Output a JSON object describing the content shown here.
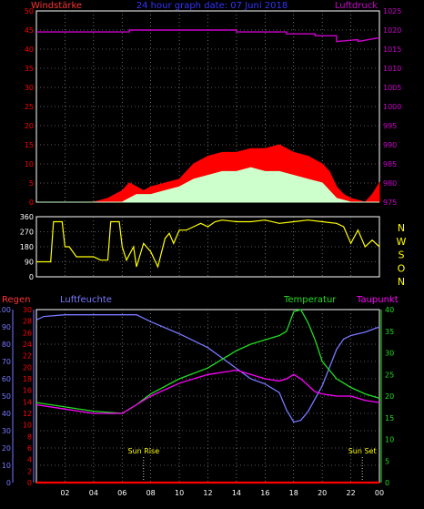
{
  "header": {
    "title": "24 hour graph date: 07 Juni 2018",
    "left_label": "Windstärke",
    "right_label": "Luftdruck"
  },
  "colors": {
    "background": "#000000",
    "frame": "#ffffff",
    "grid": "#b0b0b0",
    "wind_gust": "#ff0000",
    "wind_avg": "#ccffcc",
    "pressure": "#cc00cc",
    "direction": "#ffff00",
    "humidity": "#7777ff",
    "temperature": "#22dd22",
    "dewpoint": "#ff00ff",
    "rain": "#ff0000",
    "title": "#3333ff"
  },
  "chart_data": [
    {
      "type": "area",
      "name": "wind-pressure",
      "title": "24 hour graph date: 07 Juni 2018",
      "ylabel": "Windstärke",
      "y2label": "Luftdruck",
      "ylim": [
        0,
        50
      ],
      "y2lim": [
        975,
        1025
      ],
      "yticks": [
        "0",
        "5",
        "10",
        "15",
        "20",
        "25",
        "30",
        "35",
        "40",
        "45",
        "50"
      ],
      "y2ticks": [
        "975",
        "980",
        "985",
        "990",
        "995",
        "1000",
        "1005",
        "1010",
        "1015",
        "1020",
        "1025"
      ],
      "grid": true,
      "series": [
        {
          "name": "Luftdruck",
          "axis": "right",
          "x": [
            0,
            6.5,
            6.5,
            14,
            14,
            17.5,
            17.5,
            19.5,
            19.5,
            21,
            21,
            22.5,
            22.5,
            24
          ],
          "values": [
            1019.5,
            1019.5,
            1020,
            1020,
            1019.5,
            1019.5,
            1019,
            1019,
            1018.5,
            1018.5,
            1017,
            1017.5,
            1017,
            1018
          ]
        },
        {
          "name": "gusts",
          "axis": "left",
          "x": [
            0,
            4,
            5,
            5.5,
            6,
            6.5,
            7,
            7.5,
            8,
            9,
            10,
            11,
            12,
            13,
            14,
            15,
            16,
            17,
            18,
            19,
            20,
            20.5,
            21,
            21.5,
            22,
            23,
            23.5,
            24
          ],
          "values": [
            0,
            0,
            1,
            2,
            3,
            5,
            4,
            3,
            4,
            5,
            6,
            10,
            12,
            13,
            13,
            14,
            14,
            15,
            13,
            12,
            10,
            8,
            4,
            2,
            1,
            0,
            2,
            5
          ]
        },
        {
          "name": "average",
          "axis": "left",
          "x": [
            0,
            6,
            7,
            8,
            9,
            10,
            11,
            12,
            13,
            14,
            15,
            16,
            17,
            18,
            19,
            20,
            20.5,
            21,
            22,
            24
          ],
          "values": [
            0,
            0,
            2,
            2,
            3,
            4,
            6,
            7,
            8,
            8,
            9,
            8,
            8,
            7,
            6,
            5,
            3,
            1,
            0,
            0
          ]
        }
      ]
    },
    {
      "type": "line",
      "name": "wind-direction",
      "ylim": [
        0,
        360
      ],
      "yticks": [
        "0",
        "90",
        "180",
        "270",
        "360"
      ],
      "compass": [
        "N",
        "W",
        "S",
        "O",
        "N"
      ],
      "grid": true,
      "x": [
        0,
        1,
        1.2,
        1.8,
        2,
        2.3,
        2.8,
        3,
        3.5,
        4,
        4.5,
        5,
        5.2,
        5.8,
        6,
        6.3,
        6.8,
        7,
        7.5,
        8,
        8.5,
        9,
        9.3,
        9.6,
        10,
        10.5,
        11,
        11.5,
        12,
        12.5,
        13,
        14,
        15,
        16,
        17,
        18,
        19,
        20,
        21,
        21.5,
        22,
        22.5,
        23,
        23.5,
        24
      ],
      "values": [
        90,
        90,
        330,
        330,
        180,
        180,
        120,
        120,
        120,
        120,
        100,
        100,
        330,
        330,
        180,
        100,
        180,
        60,
        200,
        150,
        60,
        230,
        260,
        200,
        280,
        280,
        300,
        320,
        300,
        330,
        340,
        330,
        330,
        340,
        320,
        330,
        340,
        330,
        320,
        300,
        200,
        280,
        180,
        220,
        180
      ]
    },
    {
      "type": "line",
      "name": "temp-humidity-rain",
      "labels": {
        "rain": "Regen",
        "humidity": "Luftfeuchte",
        "temperature": "Temperatur",
        "dewpoint": "Taupunkt"
      },
      "ylim_humidity": [
        0,
        100
      ],
      "ylim_rain": [
        0,
        30
      ],
      "ylim_temp": [
        0,
        40
      ],
      "humidity_ticks": [
        "0",
        "10",
        "20",
        "30",
        "40",
        "50",
        "60",
        "70",
        "80",
        "90",
        "100"
      ],
      "rain_ticks": [
        "0",
        "2",
        "4",
        "6",
        "8",
        "10",
        "12",
        "14",
        "16",
        "18",
        "20",
        "22",
        "24",
        "26",
        "28",
        "30"
      ],
      "temp_ticks": [
        "0",
        "5",
        "10",
        "15",
        "20",
        "25",
        "30",
        "35",
        "40"
      ],
      "xticks": [
        "02",
        "04",
        "06",
        "08",
        "10",
        "12",
        "14",
        "16",
        "18",
        "20",
        "22",
        "00"
      ],
      "annotations": [
        {
          "text": "Sun Rise",
          "x": 7.5
        },
        {
          "text": "Sun Set",
          "x": 22.8
        }
      ],
      "grid": true,
      "series": [
        {
          "name": "Luftfeuchte",
          "axis": "humidity",
          "x": [
            0,
            0.5,
            2,
            4,
            6,
            7,
            8,
            10,
            12,
            14,
            15,
            16,
            17,
            17.5,
            18,
            18.5,
            19,
            20,
            21,
            21.5,
            22,
            23,
            24
          ],
          "values": [
            94,
            96,
            97,
            97,
            97,
            97,
            93,
            86,
            78,
            66,
            60,
            57,
            52,
            42,
            35,
            36,
            41,
            56,
            77,
            83,
            85,
            87,
            90
          ]
        },
        {
          "name": "Temperatur",
          "axis": "temp",
          "x": [
            0,
            2,
            4,
            6,
            7,
            8,
            10,
            12,
            13,
            14,
            15,
            16,
            17,
            17.5,
            18,
            18.5,
            19,
            19.5,
            20,
            21,
            22,
            23,
            24
          ],
          "values": [
            18.5,
            17.5,
            16.5,
            16,
            18,
            20.5,
            24,
            26.5,
            28.5,
            30.5,
            32,
            33,
            34,
            35,
            39.5,
            40,
            37,
            33,
            28,
            24,
            22,
            20.5,
            19.5
          ]
        },
        {
          "name": "Taupunkt",
          "axis": "temp",
          "x": [
            0,
            2,
            4,
            6,
            7,
            8,
            10,
            12,
            14,
            15,
            16,
            17,
            17.5,
            18,
            18.5,
            19,
            19.5,
            20,
            21,
            22,
            23,
            24
          ],
          "values": [
            18,
            17,
            16,
            16,
            18,
            20,
            23,
            25,
            26,
            25,
            24,
            23.5,
            24,
            25,
            24,
            22.5,
            21,
            20.5,
            20,
            20,
            19,
            18.5
          ]
        },
        {
          "name": "Regen",
          "axis": "rain",
          "x": [
            0,
            24
          ],
          "values": [
            0,
            0
          ]
        }
      ]
    }
  ]
}
